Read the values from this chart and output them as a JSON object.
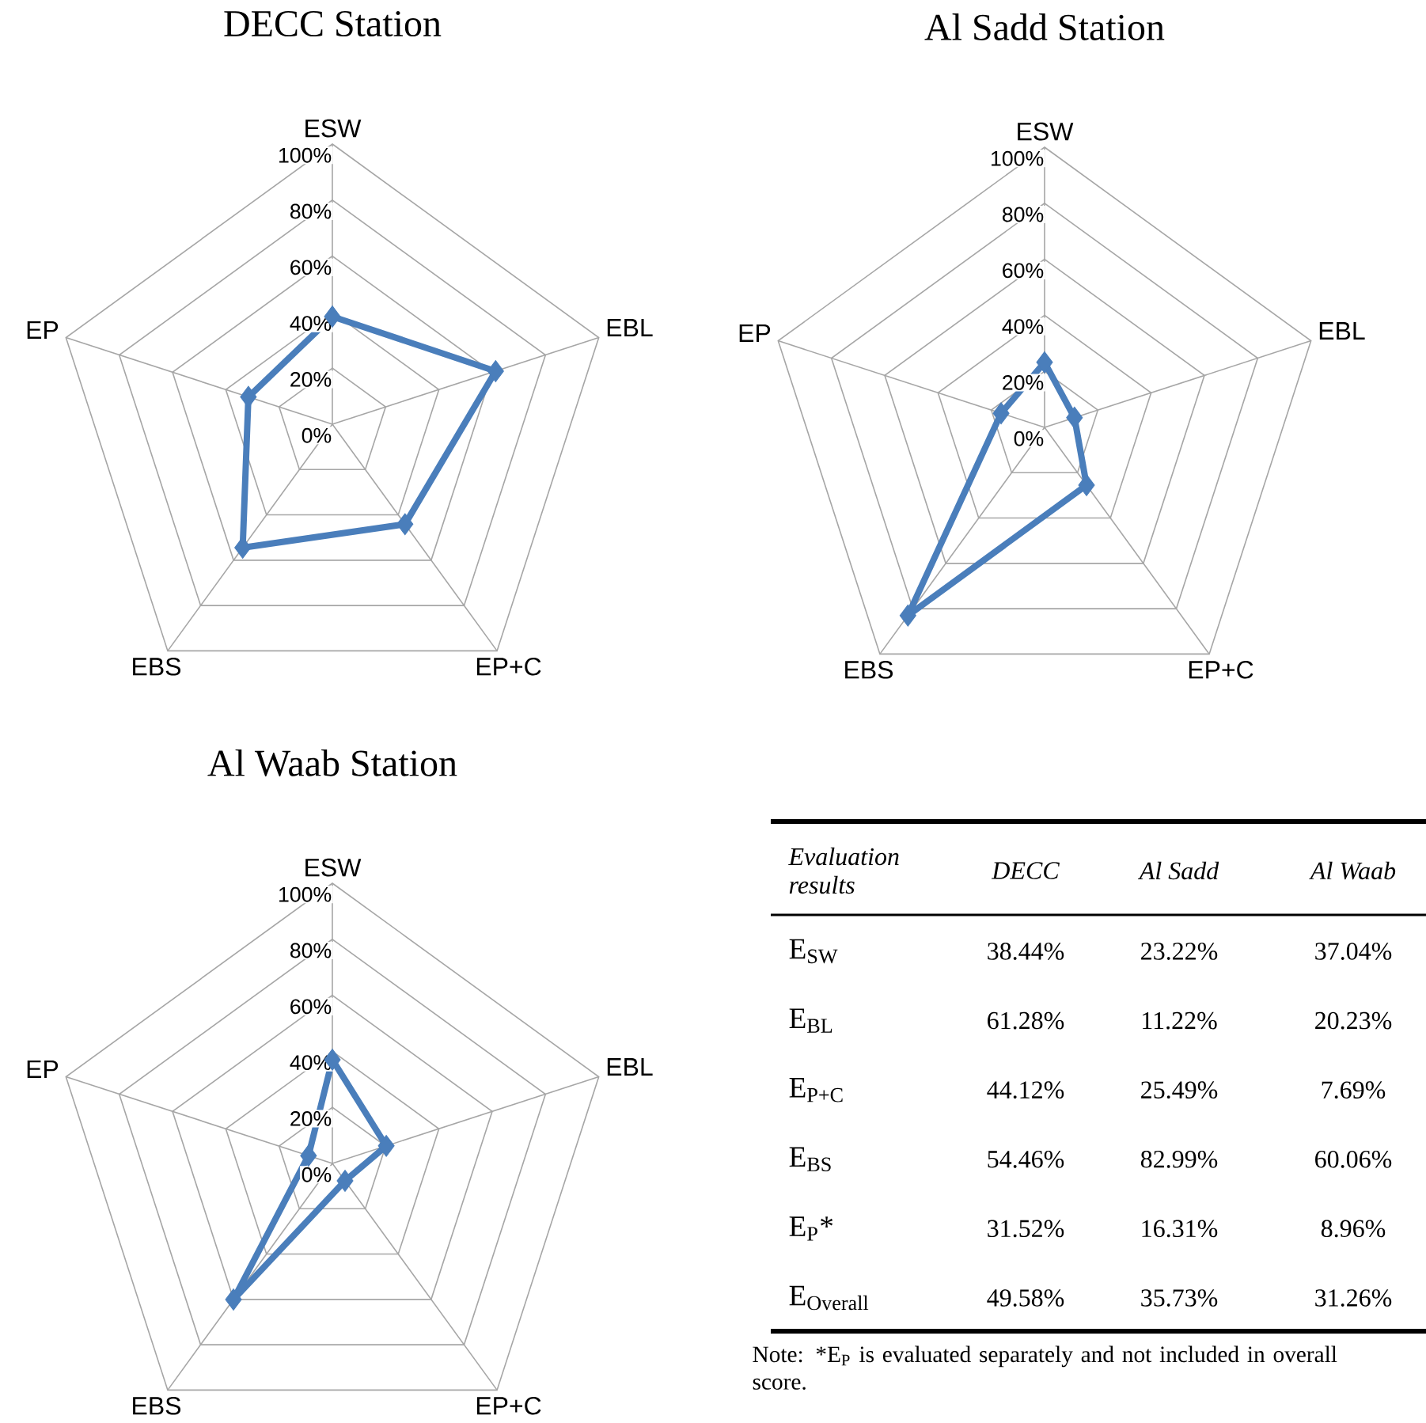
{
  "chart_data": [
    {
      "type": "radar",
      "title": "DECC Station",
      "categories": [
        "ESW",
        "EBL",
        "EP+C",
        "EBS",
        "EP"
      ],
      "ylim": [
        0,
        100
      ],
      "yticks": [
        {
          "value": 0,
          "label": "0%"
        },
        {
          "value": 20,
          "label": "20%"
        },
        {
          "value": 40,
          "label": "40%"
        },
        {
          "value": 60,
          "label": "60%"
        },
        {
          "value": 80,
          "label": "80%"
        },
        {
          "value": 100,
          "label": "100%"
        }
      ],
      "grid": true,
      "marker": "diamond",
      "line_style": "solid",
      "series": [
        {
          "color": "#4a7ebb",
          "values": [
            38.44,
            61.28,
            44.12,
            54.46,
            31.52
          ]
        }
      ]
    },
    {
      "type": "radar",
      "title": "Al Sadd Station",
      "categories": [
        "ESW",
        "EBL",
        "EP+C",
        "EBS",
        "EP"
      ],
      "ylim": [
        0,
        100
      ],
      "yticks": [
        {
          "value": 0,
          "label": "0%"
        },
        {
          "value": 20,
          "label": "20%"
        },
        {
          "value": 40,
          "label": "40%"
        },
        {
          "value": 60,
          "label": "60%"
        },
        {
          "value": 80,
          "label": "80%"
        },
        {
          "value": 100,
          "label": "100%"
        }
      ],
      "grid": true,
      "marker": "diamond",
      "line_style": "solid",
      "series": [
        {
          "color": "#4a7ebb",
          "values": [
            23.22,
            11.22,
            25.49,
            82.99,
            16.31
          ]
        }
      ]
    },
    {
      "type": "radar",
      "title": "Al Waab Station",
      "categories": [
        "ESW",
        "EBL",
        "EP+C",
        "EBS",
        "EP"
      ],
      "ylim": [
        0,
        100
      ],
      "yticks": [
        {
          "value": 0,
          "label": "0%"
        },
        {
          "value": 20,
          "label": "20%"
        },
        {
          "value": 40,
          "label": "40%"
        },
        {
          "value": 60,
          "label": "60%"
        },
        {
          "value": 80,
          "label": "80%"
        },
        {
          "value": 100,
          "label": "100%"
        }
      ],
      "grid": true,
      "marker": "diamond",
      "line_style": "solid",
      "series": [
        {
          "color": "#4a7ebb",
          "values": [
            37.04,
            20.23,
            7.69,
            60.06,
            8.96
          ]
        }
      ]
    },
    {
      "type": "other",
      "categories": [
        "Evaluation results",
        "DECC",
        "Al Sadd",
        "Al Waab"
      ],
      "y_categories": [
        "E$_{SW}$",
        "E$_{BL}$",
        "E$_{P+C}$",
        "E$_{BS}$",
        "E$_{P}$*",
        "E$_{Overall}$"
      ],
      "cell_labels": [
        [
          "38.44%",
          "23.22%",
          "37.04%"
        ],
        [
          "61.28%",
          "11.22%",
          "20.23%"
        ],
        [
          "44.12%",
          "25.49%",
          "7.69%"
        ],
        [
          "54.46%",
          "82.99%",
          "60.06%"
        ],
        [
          "31.52%",
          "16.31%",
          "8.96%"
        ],
        [
          "49.58%",
          "35.73%",
          "31.26%"
        ]
      ],
      "annotations": [
        "Note: *E$_{P}$ is evaluated separately and not included in overall score."
      ]
    }
  ]
}
